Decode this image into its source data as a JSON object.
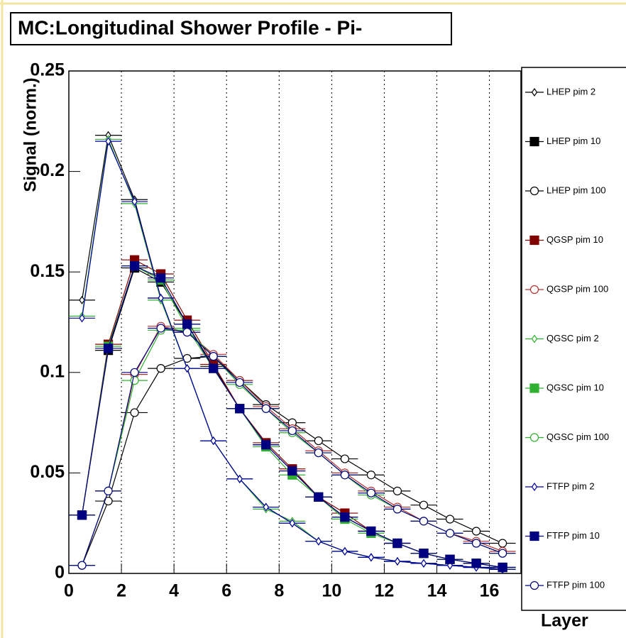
{
  "chart_data": {
    "type": "line",
    "title": "MC:Longitudinal Shower Profile - Pi-",
    "x_label": "Layer",
    "y_label": "Signal (norm.)",
    "x": [
      0.5,
      1.5,
      2.5,
      3.5,
      4.5,
      5.5,
      6.5,
      7.5,
      8.5,
      9.5,
      10.5,
      11.5,
      12.5,
      13.5,
      14.5,
      15.5,
      16.5
    ],
    "x_error": 0.5,
    "xlim": [
      0,
      17.2
    ],
    "xticks": [
      0,
      2,
      4,
      6,
      8,
      10,
      12,
      14,
      16
    ],
    "ylim": [
      0,
      0.25
    ],
    "yticks": [
      0,
      0.05,
      0.1,
      0.15,
      0.2,
      0.25
    ],
    "grid": "x",
    "series": [
      {
        "name": "LHEP pim 2",
        "color": "#000000",
        "marker": "diamond",
        "values": [
          0.136,
          0.218,
          0.186,
          0.137,
          0.102,
          0.066,
          0.047,
          0.033,
          0.025,
          0.016,
          0.011,
          0.008,
          0.006,
          0.005,
          0.004,
          0.003,
          0.002
        ]
      },
      {
        "name": "LHEP pim 10",
        "color": "#000000",
        "marker": "square",
        "values": [
          0.029,
          0.111,
          0.152,
          0.145,
          0.124,
          0.103,
          0.082,
          0.064,
          0.051,
          0.038,
          0.028,
          0.021,
          0.015,
          0.01,
          0.007,
          0.005,
          0.003
        ]
      },
      {
        "name": "LHEP pim 100",
        "color": "#000000",
        "marker": "circle",
        "values": [
          0.004,
          0.036,
          0.08,
          0.102,
          0.107,
          0.108,
          0.096,
          0.084,
          0.075,
          0.066,
          0.057,
          0.049,
          0.041,
          0.034,
          0.027,
          0.021,
          0.015
        ]
      },
      {
        "name": "QGSP pim 10",
        "color": "#800000",
        "marker": "square",
        "values": [
          0.029,
          0.114,
          0.156,
          0.149,
          0.126,
          0.104,
          0.082,
          0.065,
          0.052,
          0.038,
          0.03,
          0.021,
          0.015,
          0.01,
          0.007,
          0.005,
          0.003
        ]
      },
      {
        "name": "QGSP pim 100",
        "color": "#b03030",
        "marker": "circle",
        "values": [
          0.004,
          0.041,
          0.099,
          0.123,
          0.12,
          0.109,
          0.096,
          0.083,
          0.072,
          0.061,
          0.05,
          0.041,
          0.033,
          0.026,
          0.02,
          0.016,
          0.011
        ]
      },
      {
        "name": "QGSC pim 2",
        "color": "#30b030",
        "marker": "diamond",
        "values": [
          0.128,
          0.216,
          0.184,
          0.136,
          0.102,
          0.066,
          0.047,
          0.032,
          0.026,
          0.016,
          0.011,
          0.008,
          0.006,
          0.005,
          0.004,
          0.003,
          0.002
        ]
      },
      {
        "name": "QGSC pim 10",
        "color": "#30b030",
        "marker": "square",
        "values": [
          0.029,
          0.113,
          0.153,
          0.146,
          0.122,
          0.102,
          0.082,
          0.063,
          0.049,
          0.038,
          0.027,
          0.02,
          0.015,
          0.01,
          0.007,
          0.005,
          0.003
        ]
      },
      {
        "name": "QGSC pim 100",
        "color": "#30b030",
        "marker": "circle",
        "values": [
          0.004,
          0.041,
          0.096,
          0.121,
          0.121,
          0.108,
          0.094,
          0.082,
          0.07,
          0.06,
          0.049,
          0.039,
          0.032,
          0.026,
          0.02,
          0.015,
          0.01
        ]
      },
      {
        "name": "FTFP pim 2",
        "color": "#0000a0",
        "marker": "diamond",
        "values": [
          0.127,
          0.215,
          0.185,
          0.137,
          0.102,
          0.066,
          0.047,
          0.033,
          0.025,
          0.016,
          0.011,
          0.008,
          0.006,
          0.005,
          0.004,
          0.003,
          0.002
        ]
      },
      {
        "name": "FTFP pim 10",
        "color": "#000080",
        "marker": "square",
        "values": [
          0.029,
          0.112,
          0.153,
          0.147,
          0.124,
          0.102,
          0.082,
          0.064,
          0.051,
          0.038,
          0.028,
          0.021,
          0.015,
          0.01,
          0.007,
          0.005,
          0.003
        ]
      },
      {
        "name": "FTFP pim 100",
        "color": "#000080",
        "marker": "circle",
        "values": [
          0.004,
          0.041,
          0.1,
          0.122,
          0.12,
          0.108,
          0.095,
          0.082,
          0.071,
          0.06,
          0.049,
          0.04,
          0.032,
          0.026,
          0.02,
          0.015,
          0.01
        ]
      }
    ]
  }
}
